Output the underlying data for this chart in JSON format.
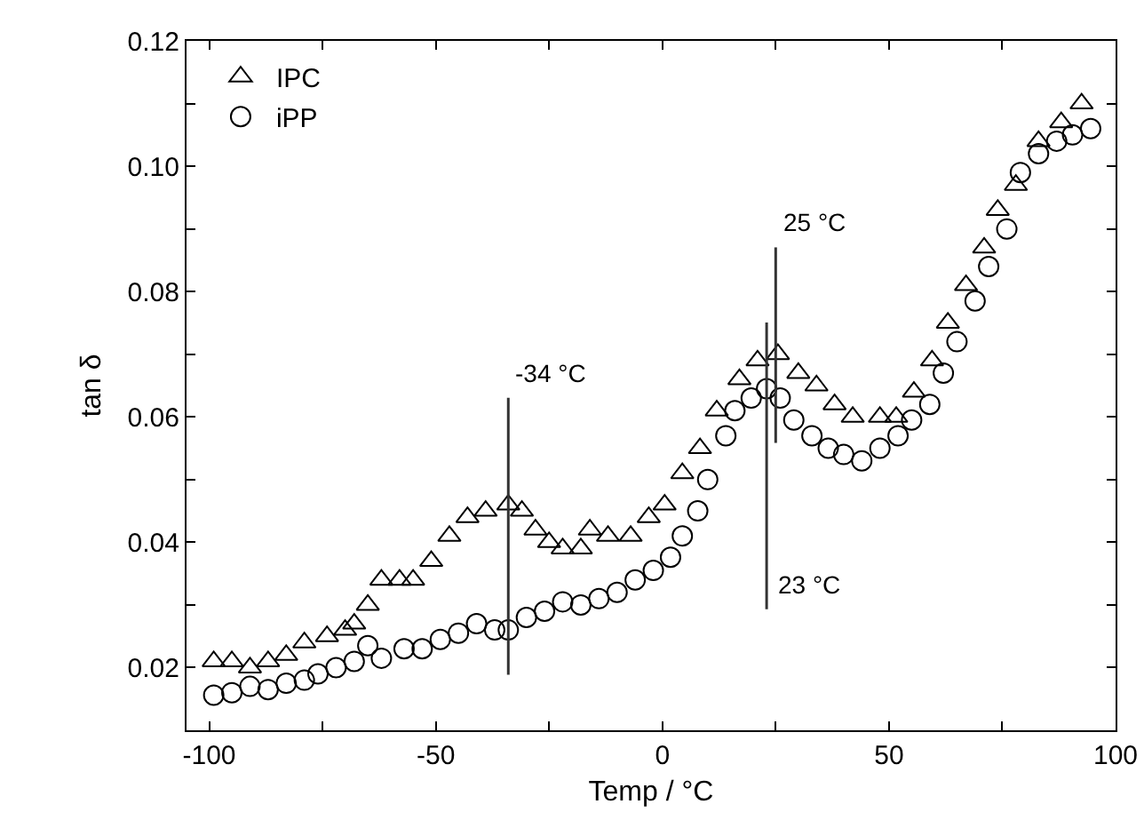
{
  "chart_data": {
    "type": "scatter",
    "xlabel": "Temp / °C",
    "ylabel": "tan δ",
    "xlim": [
      -105,
      100
    ],
    "xticks": [
      -100,
      {
        "value": -75,
        "label": null
      },
      -50,
      {
        "value": -25,
        "label": null
      },
      0,
      {
        "value": 25,
        "label": null
      },
      50,
      {
        "value": 75,
        "label": null
      },
      100
    ],
    "ylim": [
      0.01,
      0.12
    ],
    "yticks": [
      {
        "value": 0.01,
        "label": null
      },
      0.02,
      {
        "value": 0.03,
        "label": null
      },
      0.04,
      {
        "value": 0.05,
        "label": null
      },
      0.06,
      {
        "value": 0.07,
        "label": null
      },
      0.08,
      {
        "value": 0.09,
        "label": null
      },
      {
        "value": 0.1,
        "label": "0.10"
      },
      {
        "value": 0.11,
        "label": null
      },
      0.12
    ],
    "grid": false,
    "legend": "top left",
    "series": [
      {
        "name": "IPC",
        "color": "#000000",
        "marker": "triangle",
        "x": [
          -99,
          -95,
          -91,
          -87,
          -83,
          -79,
          -74,
          -70,
          -68,
          -65,
          -62,
          -58,
          -55,
          -51,
          -47,
          -43,
          -39,
          -34,
          -31,
          -28,
          -25,
          -22,
          -18,
          -16,
          -12,
          -7,
          -3,
          0.5,
          4.4,
          8.3,
          12,
          17,
          21,
          25.5,
          30,
          34,
          38,
          42,
          48,
          51.6,
          55.5,
          59.5,
          63,
          67,
          71,
          74,
          78,
          83,
          88,
          92.5
        ],
        "values": [
          0.021,
          0.021,
          0.02,
          0.021,
          0.022,
          0.024,
          0.025,
          0.026,
          0.027,
          0.03,
          0.034,
          0.034,
          0.034,
          0.037,
          0.041,
          0.044,
          0.045,
          0.046,
          0.045,
          0.042,
          0.04,
          0.039,
          0.039,
          0.042,
          0.041,
          0.041,
          0.044,
          0.046,
          0.051,
          0.055,
          0.061,
          0.066,
          0.069,
          0.07,
          0.067,
          0.065,
          0.062,
          0.06,
          0.06,
          0.06,
          0.064,
          0.069,
          0.075,
          0.081,
          0.087,
          0.093,
          0.097,
          0.104,
          0.107,
          0.11
        ]
      },
      {
        "name": "iPP",
        "color": "#000000",
        "marker": "circle",
        "x": [
          -99,
          -95,
          -91,
          -87,
          -83,
          -79,
          -76,
          -72,
          -68,
          -65,
          -62,
          -57,
          -53,
          -49,
          -45,
          -41,
          -37,
          -34,
          -30,
          -26,
          -22,
          -18,
          -14,
          -10,
          -6,
          -2,
          1.8,
          4.4,
          7.8,
          10,
          14,
          16,
          19.6,
          23,
          26,
          29,
          33,
          36.6,
          40,
          44,
          48,
          52,
          55,
          59,
          62,
          65,
          69,
          72,
          76,
          79,
          83,
          87,
          90.5,
          94.5
        ],
        "values": [
          0.0156,
          0.016,
          0.017,
          0.0165,
          0.0175,
          0.018,
          0.019,
          0.02,
          0.021,
          0.0235,
          0.0215,
          0.023,
          0.023,
          0.0245,
          0.0255,
          0.027,
          0.026,
          0.026,
          0.028,
          0.029,
          0.0305,
          0.03,
          0.031,
          0.032,
          0.034,
          0.0355,
          0.0376,
          0.041,
          0.045,
          0.05,
          0.057,
          0.061,
          0.063,
          0.0645,
          0.063,
          0.0595,
          0.057,
          0.055,
          0.054,
          0.053,
          0.055,
          0.057,
          0.0595,
          0.062,
          0.067,
          0.072,
          0.0785,
          0.084,
          0.09,
          0.099,
          0.102,
          0.104,
          0.105,
          0.106
        ]
      }
    ],
    "ref_lines": [
      {
        "axis": "x",
        "value": -34,
        "label": "-34 °C",
        "color": "#333333"
      },
      {
        "axis": "x",
        "value": 23,
        "label": "23 °C",
        "color": "#333333"
      },
      {
        "axis": "x",
        "value": 25,
        "label": "25 °C",
        "color": "#333333"
      }
    ]
  }
}
